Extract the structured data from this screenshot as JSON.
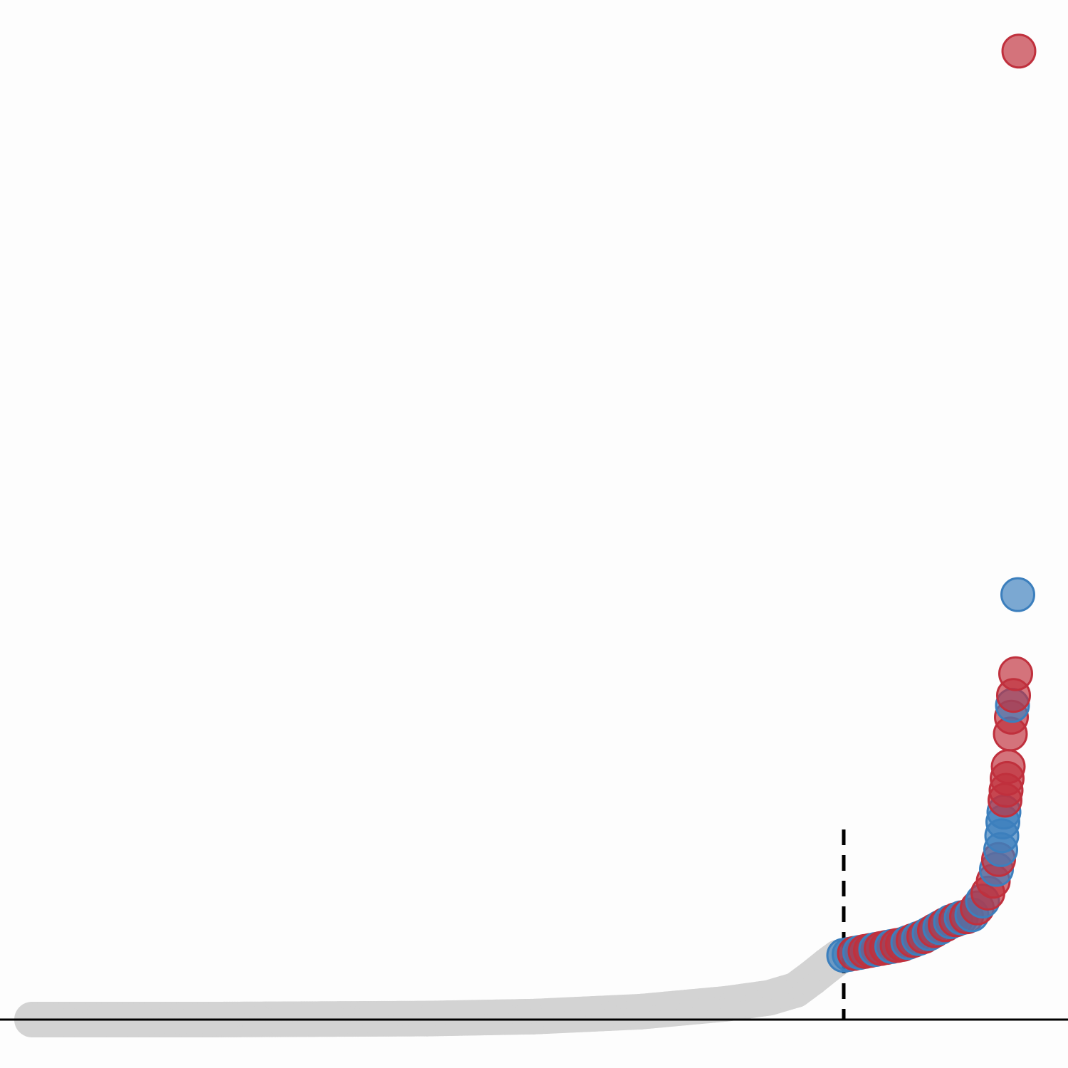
{
  "chart_data": {
    "type": "scatter",
    "title": "",
    "xlabel": "",
    "ylabel": "",
    "grid": false,
    "legend": "none",
    "threshold_x": 0.79,
    "colors": {
      "background": "#fdfdfd",
      "below_threshold": "#d3d3d3",
      "red": "#c0303d",
      "blue": "#3c7fbd",
      "axis": "#000000"
    },
    "xlim": [
      0,
      1
    ],
    "ylim": [
      0,
      1
    ],
    "baseline_curve": [
      [
        0.03,
        0.0
      ],
      [
        0.2,
        0.0
      ],
      [
        0.4,
        0.001
      ],
      [
        0.5,
        0.003
      ],
      [
        0.6,
        0.008
      ],
      [
        0.68,
        0.016
      ],
      [
        0.72,
        0.022
      ],
      [
        0.745,
        0.03
      ],
      [
        0.76,
        0.042
      ],
      [
        0.775,
        0.055
      ],
      [
        0.785,
        0.063
      ]
    ],
    "highlighted_points": [
      {
        "x": 0.79,
        "y": 0.065,
        "color": "blue"
      },
      {
        "x": 0.795,
        "y": 0.066,
        "color": "blue"
      },
      {
        "x": 0.8,
        "y": 0.067,
        "color": "red"
      },
      {
        "x": 0.805,
        "y": 0.068,
        "color": "blue"
      },
      {
        "x": 0.81,
        "y": 0.069,
        "color": "red"
      },
      {
        "x": 0.815,
        "y": 0.07,
        "color": "red"
      },
      {
        "x": 0.82,
        "y": 0.071,
        "color": "blue"
      },
      {
        "x": 0.825,
        "y": 0.072,
        "color": "red"
      },
      {
        "x": 0.83,
        "y": 0.073,
        "color": "red"
      },
      {
        "x": 0.835,
        "y": 0.074,
        "color": "blue"
      },
      {
        "x": 0.84,
        "y": 0.075,
        "color": "red"
      },
      {
        "x": 0.845,
        "y": 0.076,
        "color": "red"
      },
      {
        "x": 0.85,
        "y": 0.078,
        "color": "blue"
      },
      {
        "x": 0.855,
        "y": 0.08,
        "color": "red"
      },
      {
        "x": 0.86,
        "y": 0.082,
        "color": "blue"
      },
      {
        "x": 0.865,
        "y": 0.084,
        "color": "red"
      },
      {
        "x": 0.87,
        "y": 0.087,
        "color": "blue"
      },
      {
        "x": 0.875,
        "y": 0.09,
        "color": "red"
      },
      {
        "x": 0.88,
        "y": 0.093,
        "color": "blue"
      },
      {
        "x": 0.885,
        "y": 0.096,
        "color": "red"
      },
      {
        "x": 0.89,
        "y": 0.099,
        "color": "blue"
      },
      {
        "x": 0.895,
        "y": 0.101,
        "color": "red"
      },
      {
        "x": 0.9,
        "y": 0.103,
        "color": "blue"
      },
      {
        "x": 0.905,
        "y": 0.104,
        "color": "red"
      },
      {
        "x": 0.91,
        "y": 0.106,
        "color": "blue"
      },
      {
        "x": 0.915,
        "y": 0.113,
        "color": "red"
      },
      {
        "x": 0.92,
        "y": 0.12,
        "color": "blue"
      },
      {
        "x": 0.925,
        "y": 0.128,
        "color": "red"
      },
      {
        "x": 0.93,
        "y": 0.14,
        "color": "red"
      },
      {
        "x": 0.933,
        "y": 0.152,
        "color": "blue"
      },
      {
        "x": 0.935,
        "y": 0.162,
        "color": "red"
      },
      {
        "x": 0.937,
        "y": 0.172,
        "color": "blue"
      },
      {
        "x": 0.938,
        "y": 0.186,
        "color": "blue"
      },
      {
        "x": 0.939,
        "y": 0.2,
        "color": "blue"
      },
      {
        "x": 0.94,
        "y": 0.21,
        "color": "blue"
      },
      {
        "x": 0.941,
        "y": 0.222,
        "color": "red"
      },
      {
        "x": 0.942,
        "y": 0.232,
        "color": "red"
      },
      {
        "x": 0.943,
        "y": 0.244,
        "color": "red"
      },
      {
        "x": 0.944,
        "y": 0.256,
        "color": "red"
      },
      {
        "x": 0.946,
        "y": 0.289,
        "color": "red"
      },
      {
        "x": 0.947,
        "y": 0.306,
        "color": "red"
      },
      {
        "x": 0.948,
        "y": 0.318,
        "color": "blue"
      },
      {
        "x": 0.949,
        "y": 0.328,
        "color": "red"
      },
      {
        "x": 0.951,
        "y": 0.35,
        "color": "red"
      },
      {
        "x": 0.953,
        "y": 0.43,
        "color": "blue"
      },
      {
        "x": 0.954,
        "y": 0.98,
        "color": "red"
      }
    ]
  }
}
